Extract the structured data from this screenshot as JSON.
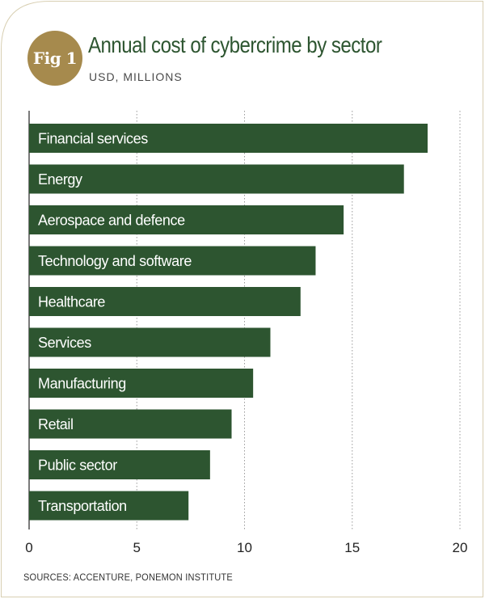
{
  "figure": {
    "badge_label": "Fig 1",
    "source": "SOURCES: ACCENTURE, PONEMON INSTITUTE"
  },
  "colors": {
    "bar": "#2d5530",
    "accent_gold": "#a68a4d",
    "frame": "#d8cfb2"
  },
  "chart_data": {
    "type": "bar",
    "orientation": "horizontal",
    "title": "Annual cost of cybercrime by sector",
    "subtitle": "USD, MILLIONS",
    "categories": [
      "Financial services",
      "Energy",
      "Aerospace and defence",
      "Technology and software",
      "Healthcare",
      "Services",
      "Manufacturing",
      "Retail",
      "Public sector",
      "Transportation"
    ],
    "values": [
      18.5,
      17.4,
      14.6,
      13.3,
      12.6,
      11.2,
      10.4,
      9.4,
      8.4,
      7.4
    ],
    "xlim": [
      0,
      20
    ],
    "xticks": [
      "0",
      "5",
      "10",
      "15",
      "20"
    ],
    "grid": true
  }
}
